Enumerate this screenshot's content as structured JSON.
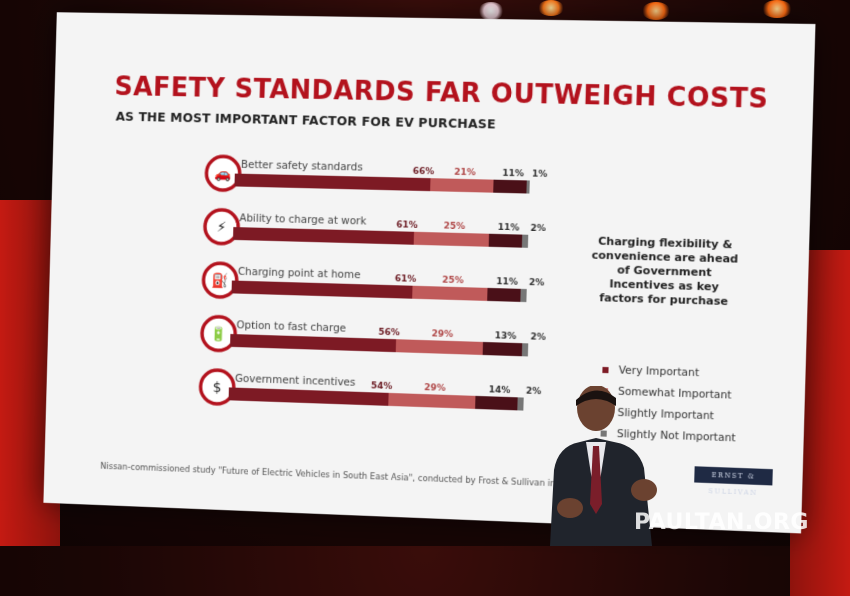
{
  "slide": {
    "title": "SAFETY STANDARDS FAR OUTWEIGH COSTS",
    "subtitle": "AS THE MOST IMPORTANT FACTOR FOR EV PURCHASE",
    "side_note": "Charging flexibility & convenience are ahead of Government Incentives as key factors for purchase",
    "footnote": "Nissan-commissioned study \"Future of Electric Vehicles in South East Asia\", conducted by Frost & Sullivan in Jan 2018",
    "logo_text": "ERNST & SULLIVAN"
  },
  "watermark": "PAULTAN.ORG",
  "colors": {
    "title_red": "#b3121d",
    "very_important": "#7d1a24",
    "somewhat_important": "#c05a5a",
    "slightly_important": "#4a1018",
    "slightly_not_important": "#777777",
    "icon_ring": "#b3121d"
  },
  "chart_data": {
    "type": "bar",
    "orientation": "horizontal",
    "stacked": true,
    "categories": [
      "Better safety standards",
      "Ability to charge at work",
      "Charging point at home",
      "Option to fast charge",
      "Government incentives"
    ],
    "icons": [
      "car-crash-icon",
      "ev-plug-icon",
      "charging-station-icon",
      "fast-charge-battery-icon",
      "money-hand-icon"
    ],
    "series": [
      {
        "name": "Very Important",
        "values": [
          66,
          61,
          61,
          56,
          54
        ],
        "labels": [
          "66%",
          "61%",
          "61%",
          "56%",
          "54%"
        ]
      },
      {
        "name": "Somewhat Important",
        "values": [
          21,
          25,
          25,
          29,
          29
        ],
        "labels": [
          "21%",
          "25%",
          "25%",
          "29%",
          "29%"
        ]
      },
      {
        "name": "Slightly Important",
        "values": [
          11,
          11,
          11,
          13,
          14
        ],
        "labels": [
          "11%",
          "11%",
          "11%",
          "13%",
          "14%"
        ]
      },
      {
        "name": "Slightly Not Important",
        "values": [
          1,
          2,
          2,
          2,
          2
        ],
        "labels": [
          "1%",
          "2%",
          "2%",
          "2%",
          "2%"
        ]
      }
    ],
    "legend_position": "right",
    "xlim": [
      0,
      100
    ]
  }
}
